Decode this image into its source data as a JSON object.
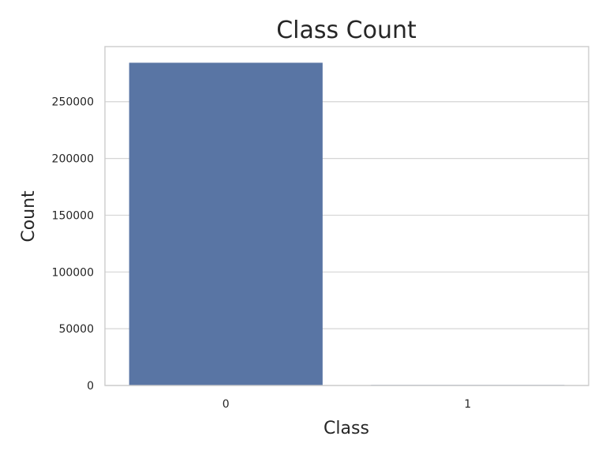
{
  "chart_data": {
    "type": "bar",
    "title": "Class Count",
    "xlabel": "Class",
    "ylabel": "Count",
    "categories": [
      "0",
      "1"
    ],
    "values": [
      284315,
      492
    ],
    "ylim": [
      0,
      298531
    ],
    "yticks": [
      0,
      50000,
      100000,
      150000,
      200000,
      250000
    ],
    "ytick_labels": [
      "0",
      "50000",
      "100000",
      "150000",
      "200000",
      "250000"
    ],
    "grid": true,
    "bar_color": "#5975a4"
  }
}
